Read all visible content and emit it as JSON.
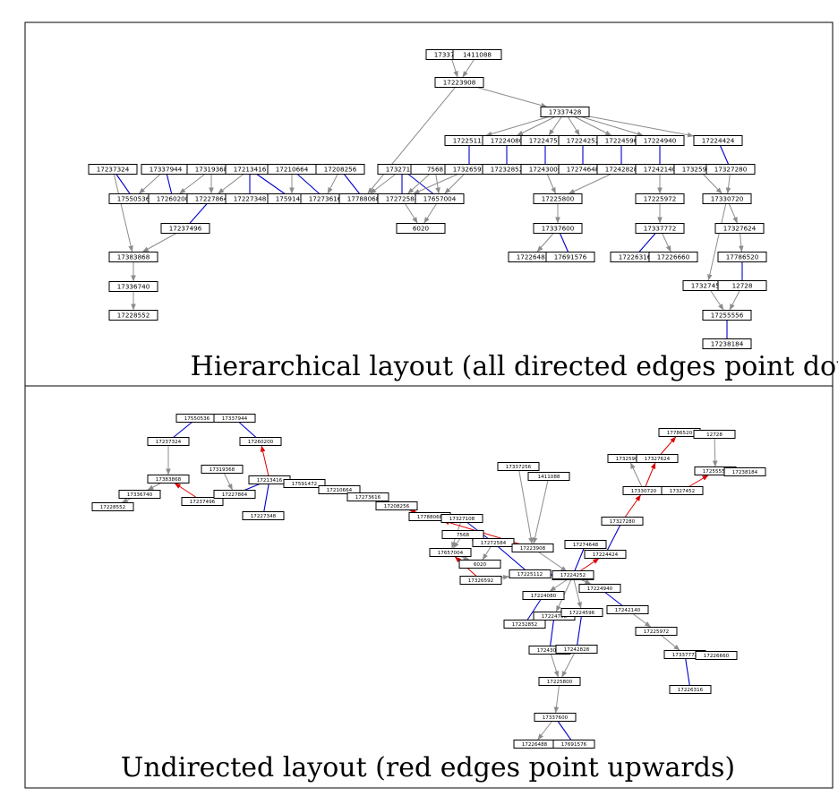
{
  "colors": {
    "directed_edge": "#8c8c8c",
    "undirected_edge": "#0000cc",
    "upward_edge": "#dd0000",
    "frame": "#000000",
    "node_border": "#000000"
  },
  "panels": [
    {
      "id": "hierarchical",
      "caption": "Hierarchical layout (all directed edges point downwards)",
      "nodes": [
        "17337256",
        "1411088",
        "17223908",
        "17337428",
        "17225112",
        "17224080",
        "17224758",
        "17224252",
        "17224596",
        "17224940",
        "17224424",
        "17237324",
        "17337944",
        "17319368",
        "17213416",
        "17210664",
        "17208256",
        "17327108",
        "7568",
        "17326592",
        "17232852",
        "17243000",
        "17274648",
        "17242828",
        "17242140",
        "17325904",
        "17327280",
        "17550536",
        "17260200",
        "17227864",
        "17227348",
        "17591472",
        "17273616",
        "17788068",
        "17272584",
        "17657004",
        "17225800",
        "17225972",
        "17330720",
        "17237496",
        "6020",
        "17337600",
        "17337772",
        "17327624",
        "17383868",
        "17226488",
        "17691576",
        "17226316",
        "17226660",
        "17786520",
        "17336740",
        "17327452",
        "12728",
        "17228552",
        "17255556",
        "17238184"
      ]
    },
    {
      "id": "undirected",
      "caption": "Undirected layout (red edges point upwards)",
      "nodes": [
        "17550536",
        "17337944",
        "17237324",
        "17260200",
        "17319368",
        "17383868",
        "17336740",
        "17228552",
        "17237496",
        "17227864",
        "17213416",
        "17591472",
        "17227348",
        "17210664",
        "17273616",
        "17208256",
        "17788068",
        "17327108",
        "7568",
        "17657004",
        "17272584",
        "6020",
        "17337256",
        "1411088",
        "17223908",
        "17225112",
        "17326592",
        "17337428",
        "17224080",
        "17232852",
        "17224758",
        "17243000",
        "17225800",
        "17337600",
        "17226488",
        "17691576",
        "17224596",
        "17242828",
        "17274648",
        "17224252",
        "17224424",
        "17327280",
        "17330720",
        "17325904",
        "17327624",
        "17786520",
        "12728",
        "17255556",
        "17238184",
        "17327452",
        "17224940",
        "17242140",
        "17225972",
        "17337772",
        "17226660",
        "17226316"
      ]
    }
  ]
}
